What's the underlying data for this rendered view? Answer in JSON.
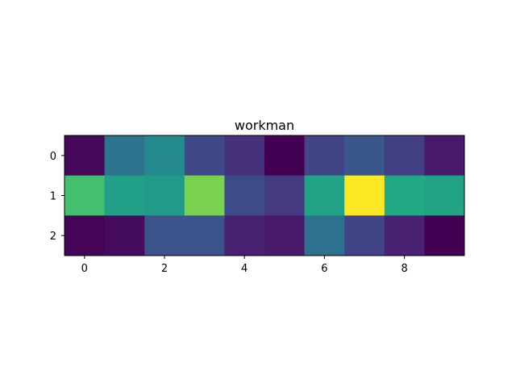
{
  "chart_data": {
    "type": "heatmap",
    "title": "workman",
    "xlabel": "",
    "ylabel": "",
    "rows": [
      0,
      1,
      2
    ],
    "columns": [
      0,
      1,
      2,
      3,
      4,
      5,
      6,
      7,
      8,
      9
    ],
    "xticks": [
      0,
      2,
      4,
      6,
      8
    ],
    "yticks": [
      0,
      1,
      2
    ],
    "xlim": [
      -0.5,
      9.5
    ],
    "ylim": [
      2.5,
      -0.5
    ],
    "colormap": "viridis",
    "vmin": 0.0,
    "vmax": 1.0,
    "values": [
      [
        0.02,
        0.38,
        0.47,
        0.22,
        0.14,
        0.0,
        0.2,
        0.27,
        0.18,
        0.07
      ],
      [
        0.7,
        0.56,
        0.54,
        0.8,
        0.23,
        0.17,
        0.58,
        1.0,
        0.6,
        0.58
      ],
      [
        0.01,
        0.03,
        0.25,
        0.25,
        0.09,
        0.07,
        0.37,
        0.2,
        0.09,
        0.0
      ]
    ],
    "grid": false,
    "legend": "none"
  }
}
